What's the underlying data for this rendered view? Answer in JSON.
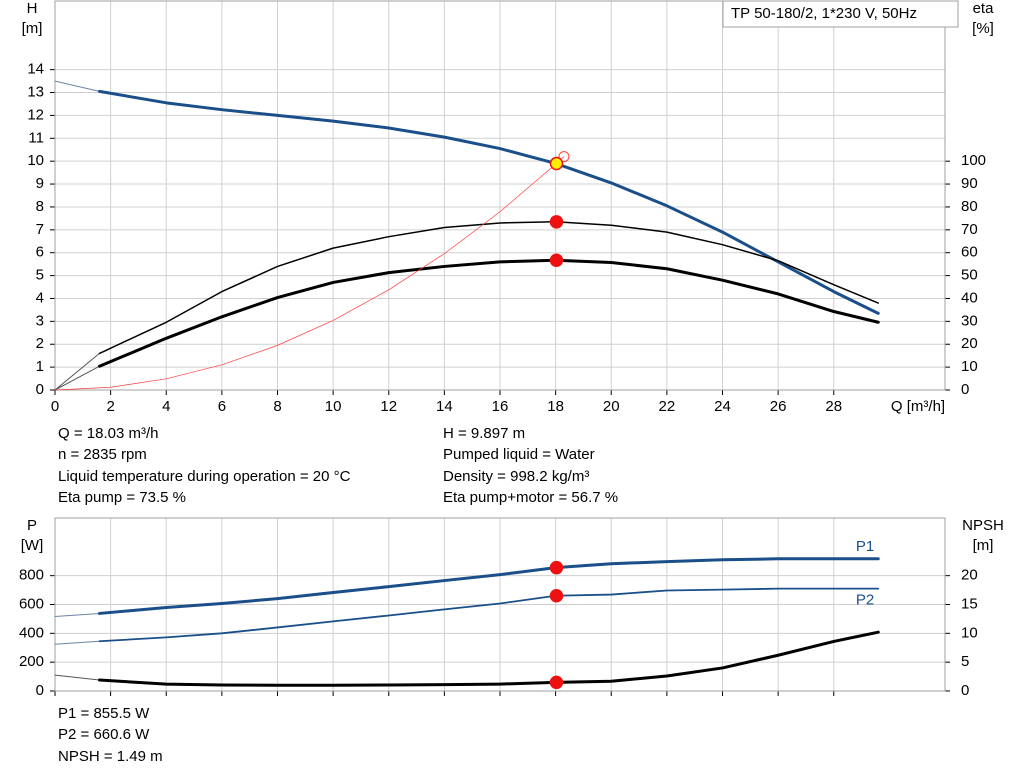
{
  "chart_data": [
    {
      "type": "line",
      "label_box": "TP 50-180/2, 1*230 V, 50Hz",
      "y_label": "H",
      "y_unit": "[m]",
      "y2_label": "eta",
      "y2_unit": "[%]",
      "x_label": "Q [m³/h]",
      "xlim": [
        0,
        32
      ],
      "xticks": [
        0,
        2,
        4,
        6,
        8,
        10,
        12,
        14,
        16,
        18,
        20,
        22,
        24,
        26,
        28
      ],
      "show_xtick_labels": true,
      "ylim": [
        0,
        17
      ],
      "yticks": [
        0,
        1,
        2,
        3,
        4,
        5,
        6,
        7,
        8,
        9,
        10,
        11,
        12,
        13,
        14
      ],
      "y2lim": [
        0,
        170
      ],
      "y2ticks": [
        0,
        10,
        20,
        30,
        40,
        50,
        60,
        70,
        80,
        90,
        100
      ],
      "grid": true,
      "series": [
        {
          "color": "#6b84a8",
          "width": 1,
          "x": [
            0,
            1.6
          ],
          "values": [
            13.5,
            13.05
          ]
        },
        {
          "color": "#1a4f8a",
          "width": 3,
          "x": [
            1.6,
            4,
            6,
            8,
            10,
            12,
            14,
            16,
            18,
            20,
            22,
            24,
            26,
            28,
            29.6
          ],
          "values": [
            13.05,
            12.55,
            12.25,
            12.0,
            11.75,
            11.45,
            11.05,
            10.55,
            9.9,
            9.05,
            8.05,
            6.9,
            5.6,
            4.3,
            3.35
          ]
        },
        {
          "color": "#555555",
          "width": 1,
          "axis": "y2",
          "x": [
            0,
            1.6
          ],
          "values": [
            0,
            16
          ]
        },
        {
          "color": "#000000",
          "width": 1.5,
          "axis": "y2",
          "x": [
            1.6,
            4,
            6,
            8,
            10,
            12,
            14,
            16,
            18,
            20,
            22,
            24,
            26,
            28,
            29.6
          ],
          "values": [
            16,
            29.6,
            43,
            54,
            62,
            67,
            71,
            73,
            73.5,
            72,
            69,
            63.5,
            56.5,
            46,
            38
          ]
        },
        {
          "color": "#555555",
          "width": 1,
          "axis": "y2",
          "x": [
            0,
            1.6
          ],
          "values": [
            0,
            10.4
          ]
        },
        {
          "color": "#000000",
          "width": 3,
          "axis": "y2",
          "x": [
            1.6,
            4,
            6,
            8,
            10,
            12,
            14,
            16,
            18,
            20,
            22,
            24,
            26,
            28,
            29.6
          ],
          "values": [
            10.4,
            22.6,
            32,
            40.4,
            47,
            51.3,
            54,
            56,
            56.7,
            55.7,
            53,
            48,
            42,
            34.3,
            29.6
          ]
        },
        {
          "color": "#ff3b3b",
          "width": 0.7,
          "x": [
            0,
            2,
            4,
            6,
            8,
            10,
            12,
            14,
            16,
            18.03,
            18.3
          ],
          "values": [
            0,
            0.12,
            0.49,
            1.1,
            1.95,
            3.04,
            4.38,
            5.96,
            7.79,
            9.897,
            10.2
          ]
        },
        {
          "color": "#ff3b3b",
          "marker": "ring",
          "x": [
            18.3
          ],
          "values": [
            10.2
          ]
        },
        {
          "color": "#ee1111",
          "fill": "#ffee00",
          "marker": "dot",
          "x": [
            18.03
          ],
          "values": [
            9.897
          ]
        },
        {
          "color": "#ee1111",
          "fill": "#ee1111",
          "marker": "dot",
          "axis": "y2",
          "x": [
            18.03
          ],
          "values": [
            73.5
          ]
        },
        {
          "color": "#ee1111",
          "fill": "#ee1111",
          "marker": "dot",
          "axis": "y2",
          "x": [
            18.03
          ],
          "values": [
            56.7
          ]
        }
      ]
    },
    {
      "type": "line",
      "y_label": "P",
      "y_unit": "[W]",
      "y2_label": "NPSH",
      "y2_unit": "[m]",
      "xlim": [
        0,
        32
      ],
      "xticks": [
        0,
        2,
        4,
        6,
        8,
        10,
        12,
        14,
        16,
        18,
        20,
        22,
        24,
        26,
        28
      ],
      "show_xtick_labels": false,
      "ylim": [
        0,
        1200
      ],
      "yticks": [
        0,
        200,
        400,
        600,
        800
      ],
      "y2lim": [
        0,
        30
      ],
      "y2ticks": [
        0,
        5,
        10,
        15,
        20
      ],
      "grid": true,
      "series": [
        {
          "color": "#6b84a8",
          "width": 1,
          "x": [
            0,
            1.6
          ],
          "values": [
            517,
            538
          ]
        },
        {
          "name": "P1",
          "color": "#1a4f8a",
          "width": 3,
          "x": [
            1.6,
            4,
            6,
            8,
            10,
            12,
            14,
            16,
            18,
            20,
            22,
            24,
            26,
            28,
            29.6
          ],
          "values": [
            538,
            579,
            607,
            641,
            683,
            724,
            766,
            807,
            855.5,
            883,
            897,
            910,
            917,
            917,
            917
          ]
        },
        {
          "color": "#6b84a8",
          "width": 1,
          "x": [
            0,
            1.6
          ],
          "values": [
            324,
            345
          ]
        },
        {
          "name": "P2",
          "color": "#1a4f8a",
          "width": 1.8,
          "x": [
            1.6,
            4,
            6,
            8,
            10,
            12,
            14,
            16,
            18,
            20,
            22,
            24,
            26,
            28,
            29.6
          ],
          "values": [
            345,
            372,
            400,
            441,
            483,
            524,
            566,
            607,
            660.6,
            669,
            697,
            703,
            710,
            710,
            710
          ]
        },
        {
          "color": "#555555",
          "width": 1,
          "axis": "y2",
          "x": [
            0,
            1.6
          ],
          "values": [
            2.76,
            1.9
          ]
        },
        {
          "color": "#000000",
          "width": 3,
          "axis": "y2",
          "x": [
            1.6,
            4,
            6,
            8,
            10,
            12,
            14,
            16,
            18,
            20,
            22,
            24,
            26,
            28,
            29.6
          ],
          "values": [
            1.9,
            1.2,
            1.03,
            1.0,
            1.0,
            1.05,
            1.1,
            1.2,
            1.49,
            1.7,
            2.6,
            4.0,
            6.2,
            8.6,
            10.2
          ]
        },
        {
          "color": "#ee1111",
          "fill": "#ee1111",
          "marker": "dot",
          "x": [
            18.03
          ],
          "values": [
            855.5
          ]
        },
        {
          "color": "#ee1111",
          "fill": "#ee1111",
          "marker": "dot",
          "x": [
            18.03
          ],
          "values": [
            660.6
          ]
        },
        {
          "color": "#ee1111",
          "fill": "#ee1111",
          "marker": "dot",
          "axis": "y2",
          "x": [
            18.03
          ],
          "values": [
            1.49
          ]
        }
      ]
    }
  ],
  "info": {
    "left": [
      "Q = 18.03 m³/h",
      "n = 2835 rpm",
      "Liquid temperature during operation = 20 °C",
      "Eta pump = 73.5 %"
    ],
    "right": [
      "H = 9.897 m",
      "Pumped liquid = Water",
      "Density = 998.2 kg/m³",
      "Eta pump+motor = 56.7 %"
    ],
    "bottom": [
      "P1 = 855.5 W",
      "P2 = 660.6 W",
      "NPSH = 1.49 m"
    ]
  }
}
